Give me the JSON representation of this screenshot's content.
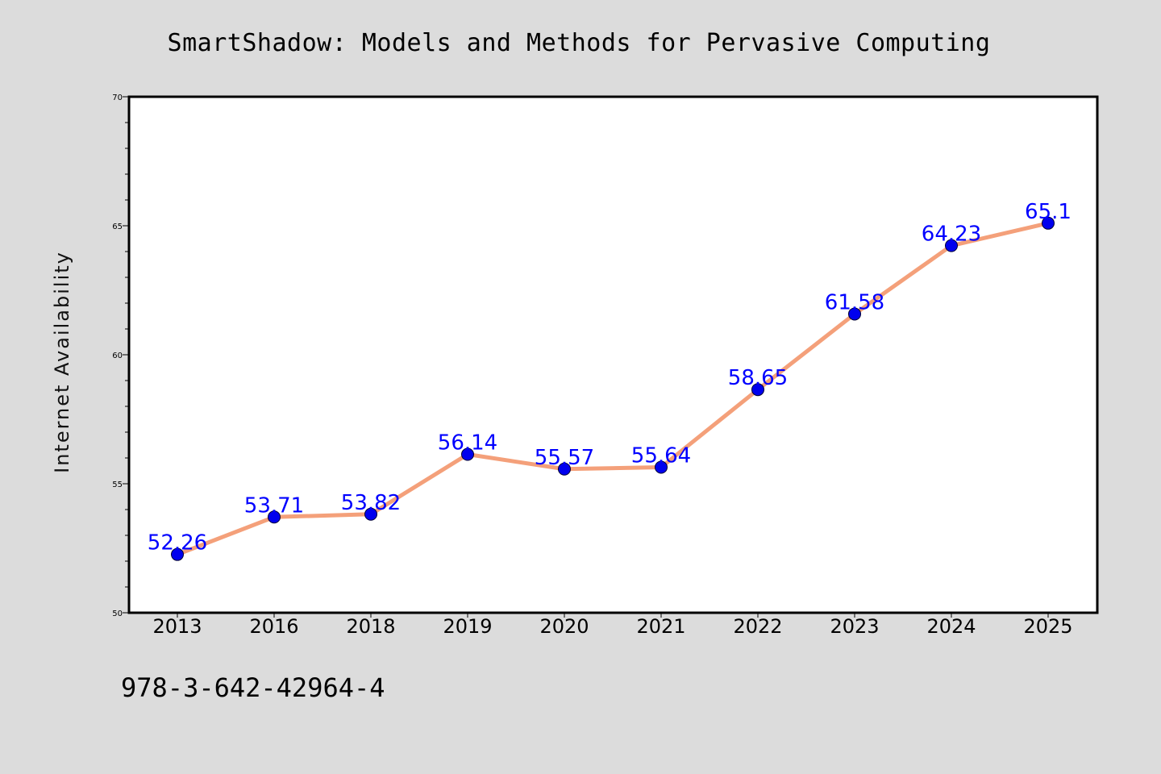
{
  "chart_data": {
    "type": "line",
    "title": "SmartShadow: Models and Methods for Pervasive Computing",
    "xlabel": "",
    "ylabel": "Internet Availability",
    "categories": [
      "2013",
      "2016",
      "2018",
      "2019",
      "2020",
      "2021",
      "2022",
      "2023",
      "2024",
      "2025"
    ],
    "series": [
      {
        "values": [
          52.26,
          53.71,
          53.82,
          56.14,
          55.57,
          55.64,
          58.65,
          61.58,
          64.23,
          65.1
        ],
        "labels": [
          "52.26",
          "53.71",
          "53.82",
          "56.14",
          "55.57",
          "55.64",
          "58.65",
          "61.58",
          "64.23",
          "65.1"
        ],
        "line_color": "#f4a07a",
        "marker_color": "#0000ee"
      }
    ],
    "ylim": [
      50,
      70
    ],
    "yticks": [
      "50",
      "55",
      "60",
      "65",
      "70"
    ],
    "grid": false,
    "legend": "none"
  },
  "footer": {
    "isbn": "978-3-642-42964-4"
  },
  "colors": {
    "background": "#dcdcdc",
    "plot_background": "#ffffff",
    "line": "#f4a07a",
    "marker": "#0000ee",
    "data_label": "#0000ff"
  }
}
